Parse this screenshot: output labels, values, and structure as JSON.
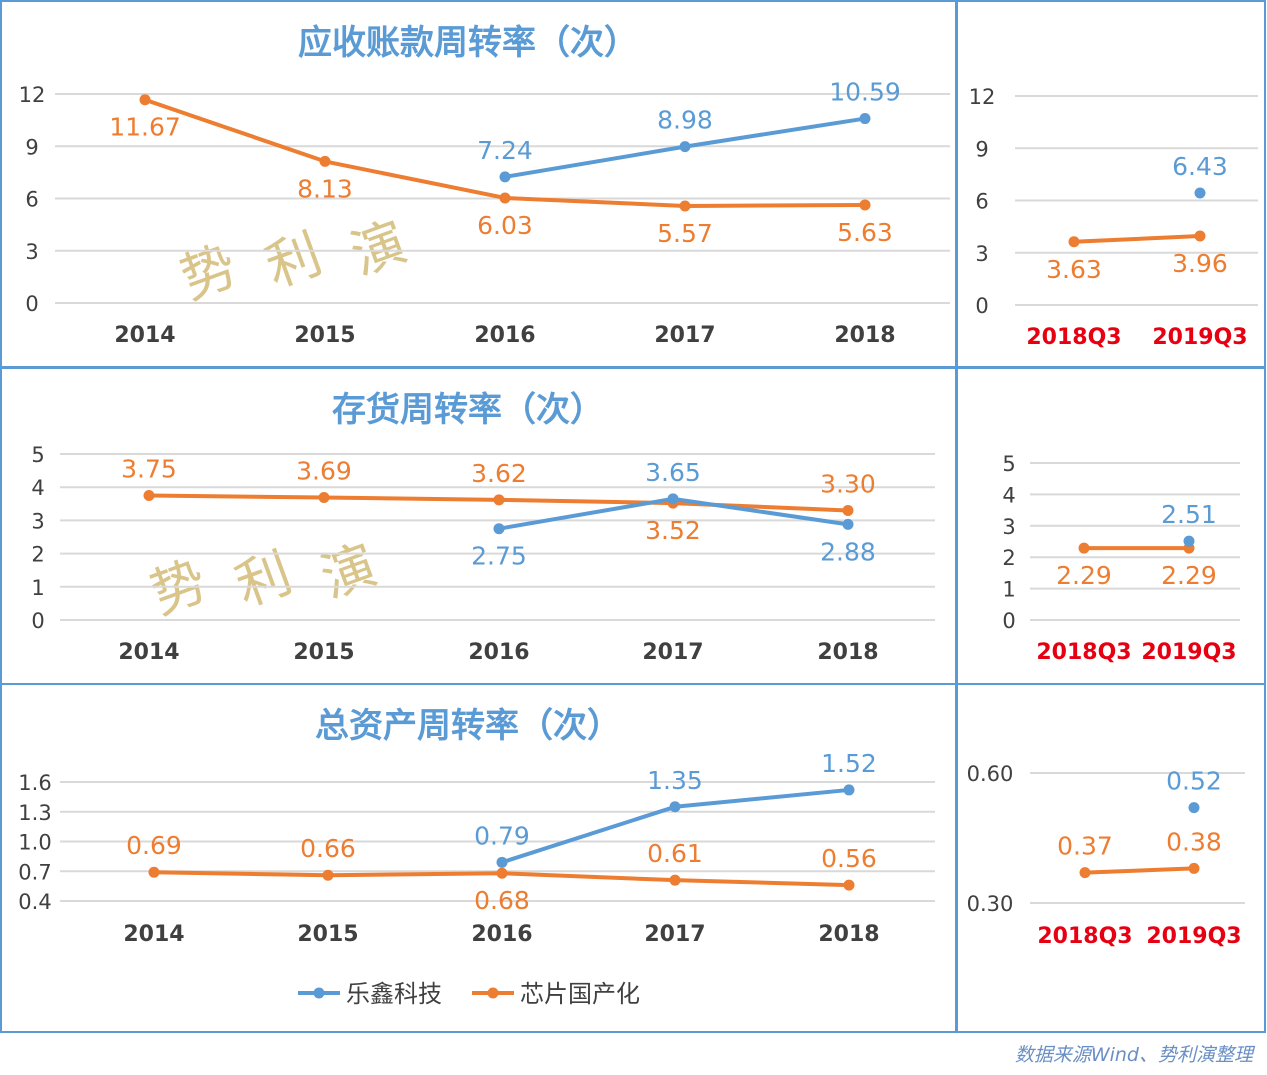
{
  "colors": {
    "series_blue": "#5b9bd5",
    "series_orange": "#ed7d31",
    "title": "#5b9bd5",
    "panel_border": "#5b9bd5",
    "period_label_red": "#e60012",
    "gridline": "#d9d9d9"
  },
  "legend": {
    "placement": "bottom",
    "items": [
      {
        "name": "乐鑫科技",
        "color": "#5b9bd5"
      },
      {
        "name": "芯片国产化",
        "color": "#ed7d31"
      }
    ]
  },
  "watermark": "势利演",
  "source_note": "数据来源Wind、势利演整理",
  "chart_data": [
    {
      "type": "line",
      "title": "应收账款周转率（次）",
      "categories": [
        "2014",
        "2015",
        "2016",
        "2017",
        "2018"
      ],
      "yticks": [
        "0",
        "3",
        "6",
        "9",
        "12"
      ],
      "ylim": [
        0,
        12
      ],
      "grid": true,
      "series": [
        {
          "name": "乐鑫科技",
          "values": [
            null,
            null,
            7.24,
            8.98,
            10.59
          ],
          "labels": [
            "",
            "",
            "7.24",
            "8.98",
            "10.59"
          ]
        },
        {
          "name": "芯片国产化",
          "values": [
            11.67,
            8.13,
            6.03,
            5.57,
            5.63
          ],
          "labels": [
            "11.67",
            "8.13",
            "6.03",
            "5.57",
            "5.63"
          ]
        }
      ]
    },
    {
      "type": "line",
      "title": "",
      "categories": [
        "2018Q3",
        "2019Q3"
      ],
      "yticks": [
        "0",
        "3",
        "6",
        "9",
        "12"
      ],
      "ylim": [
        0,
        12
      ],
      "grid": true,
      "series": [
        {
          "name": "乐鑫科技",
          "values": [
            null,
            6.43
          ],
          "labels": [
            "",
            "6.43"
          ]
        },
        {
          "name": "芯片国产化",
          "values": [
            3.63,
            3.96
          ],
          "labels": [
            "3.63",
            "3.96"
          ]
        }
      ]
    },
    {
      "type": "line",
      "title": "存货周转率（次）",
      "categories": [
        "2014",
        "2015",
        "2016",
        "2017",
        "2018"
      ],
      "yticks": [
        "0",
        "1",
        "2",
        "3",
        "4",
        "5"
      ],
      "ylim": [
        0,
        5
      ],
      "grid": true,
      "series": [
        {
          "name": "乐鑫科技",
          "values": [
            null,
            null,
            2.75,
            3.65,
            2.88
          ],
          "labels": [
            "",
            "",
            "2.75",
            "3.65",
            "2.88"
          ]
        },
        {
          "name": "芯片国产化",
          "values": [
            3.75,
            3.69,
            3.62,
            3.52,
            3.3
          ],
          "labels": [
            "3.75",
            "3.69",
            "3.62",
            "3.52",
            "3.30"
          ]
        }
      ]
    },
    {
      "type": "line",
      "title": "",
      "categories": [
        "2018Q3",
        "2019Q3"
      ],
      "yticks": [
        "0",
        "1",
        "2",
        "3",
        "4",
        "5"
      ],
      "ylim": [
        0,
        5
      ],
      "grid": true,
      "series": [
        {
          "name": "乐鑫科技",
          "values": [
            null,
            2.51
          ],
          "labels": [
            "",
            "2.51"
          ]
        },
        {
          "name": "芯片国产化",
          "values": [
            2.29,
            2.29
          ],
          "labels": [
            "2.29",
            "2.29"
          ]
        }
      ]
    },
    {
      "type": "line",
      "title": "总资产周转率（次）",
      "categories": [
        "2014",
        "2015",
        "2016",
        "2017",
        "2018"
      ],
      "yticks": [
        "0.4",
        "0.7",
        "1.0",
        "1.3",
        "1.6"
      ],
      "ylim": [
        0.4,
        1.6
      ],
      "grid": true,
      "series": [
        {
          "name": "乐鑫科技",
          "values": [
            null,
            null,
            0.79,
            1.35,
            1.52
          ],
          "labels": [
            "",
            "",
            "0.79",
            "1.35",
            "1.52"
          ]
        },
        {
          "name": "芯片国产化",
          "values": [
            0.69,
            0.66,
            0.68,
            0.61,
            0.56
          ],
          "labels": [
            "0.69",
            "0.66",
            "0.68",
            "0.61",
            "0.56"
          ]
        }
      ]
    },
    {
      "type": "line",
      "title": "",
      "categories": [
        "2018Q3",
        "2019Q3"
      ],
      "yticks": [
        "0.30",
        "0.60"
      ],
      "ylim": [
        0.3,
        0.6
      ],
      "grid": true,
      "series": [
        {
          "name": "乐鑫科技",
          "values": [
            null,
            0.52
          ],
          "labels": [
            "",
            "0.52"
          ]
        },
        {
          "name": "芯片国产化",
          "values": [
            0.37,
            0.38
          ],
          "labels": [
            "0.37",
            "0.38"
          ]
        }
      ]
    }
  ]
}
